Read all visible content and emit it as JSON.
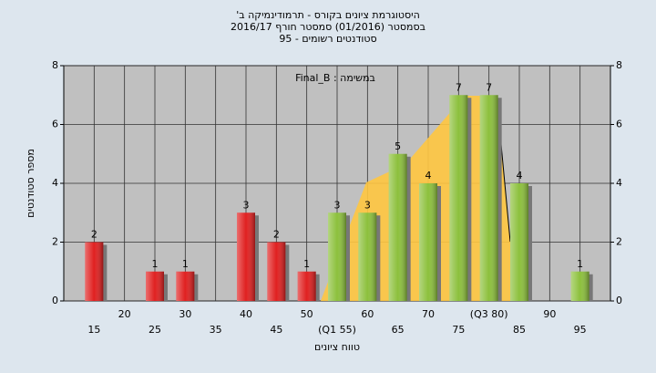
{
  "chart_data": {
    "type": "bar",
    "title": "היסטוגרמת ציונים בקורס - תרמודינמיקה ב'",
    "subtitle": "בסמסטר (01/2016) סמסטר חורף 2016/17",
    "subtitle2": "סטודנטים רשומים - 95",
    "annotation": "Final_B : במשימה",
    "x_label": "טווח ציונים",
    "y_label": "מספר סטודנטים",
    "x": [
      15,
      25,
      30,
      40,
      45,
      50,
      55,
      60,
      65,
      70,
      75,
      80,
      85,
      95
    ],
    "values": [
      2,
      1,
      1,
      3,
      2,
      1,
      3,
      3,
      5,
      4,
      7,
      7,
      4,
      1
    ],
    "colors": [
      "#e02020",
      "#e02020",
      "#e02020",
      "#e02020",
      "#e02020",
      "#e02020",
      "#8cc03c",
      "#8cc03c",
      "#8cc03c",
      "#8cc03c",
      "#8cc03c",
      "#8cc03c",
      "#8cc03c",
      "#8cc03c"
    ],
    "xlim": [
      10,
      100
    ],
    "xticks": [
      15,
      20,
      25,
      30,
      35,
      40,
      45,
      50,
      {
        "value": 55,
        "label": "(Q1 55)"
      },
      60,
      65,
      70,
      75,
      {
        "value": 80,
        "label": "(Q3 80)"
      },
      85,
      90,
      95
    ],
    "ylim": [
      0,
      8
    ],
    "yticks": [
      0,
      2,
      4,
      6,
      8
    ],
    "y2lim": [
      0,
      8
    ],
    "y2ticks": [
      0,
      2,
      4,
      6,
      8
    ],
    "grid": true
  }
}
